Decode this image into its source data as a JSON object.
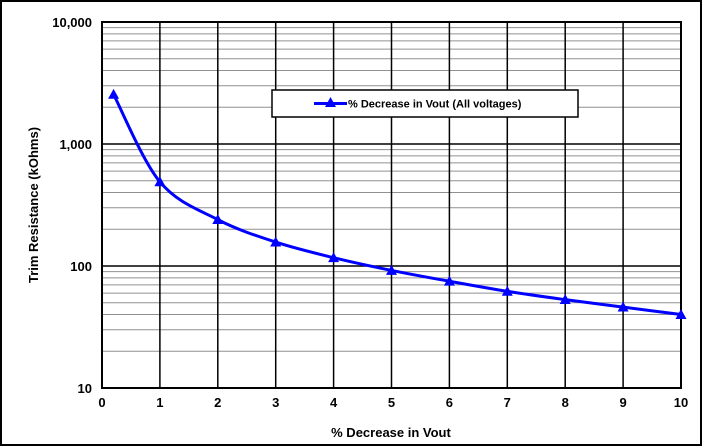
{
  "chart_data": {
    "type": "line",
    "xlabel": "% Decrease in Vout",
    "ylabel": "Trim Resistance (kOhms)",
    "xlim": [
      0,
      10
    ],
    "ylim": [
      10,
      10000
    ],
    "yscale": "log",
    "grid": true,
    "legend": "top-right",
    "x_ticks": [
      "0",
      "1",
      "2",
      "3",
      "4",
      "5",
      "6",
      "7",
      "8",
      "9",
      "10"
    ],
    "y_ticks": [
      "10",
      "100",
      "1,000",
      "10,000"
    ],
    "series": [
      {
        "name": "% Decrease in Vout (All voltages)",
        "color": "#0000ff",
        "marker": "triangle",
        "x": [
          0.2,
          1,
          2,
          3,
          4,
          5,
          6,
          7,
          8,
          9,
          10
        ],
        "y": [
          2550,
          490,
          240,
          157,
          117,
          92,
          75,
          62,
          53,
          46,
          40
        ]
      }
    ]
  }
}
